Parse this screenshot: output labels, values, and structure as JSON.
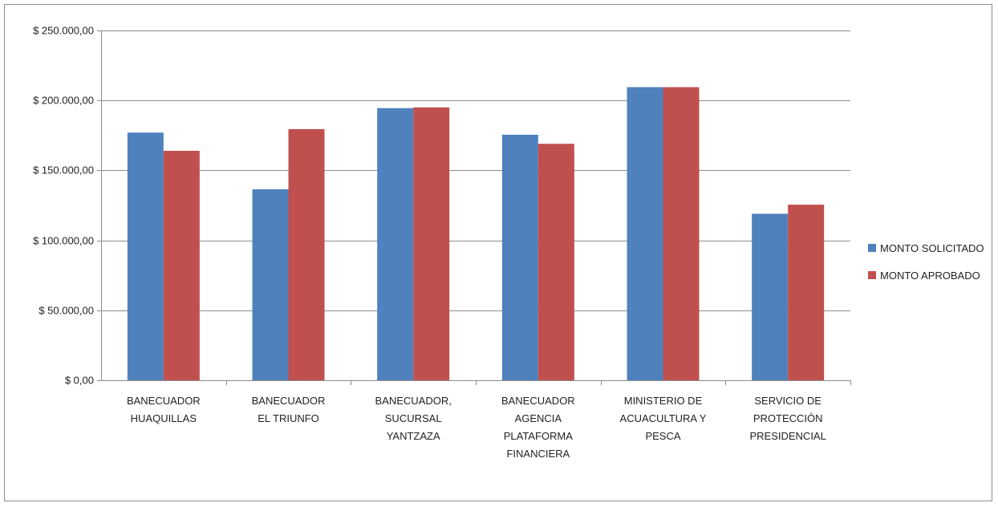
{
  "chart_data": {
    "type": "bar",
    "title": "",
    "xlabel": "",
    "ylabel": "",
    "ylim": [
      0,
      250000
    ],
    "ytick_values": [
      0,
      50000,
      100000,
      150000,
      200000,
      250000
    ],
    "ytick_labels": [
      "$ 0,00",
      "$ 50.000,00",
      "$ 100.000,00",
      "$ 150.000,00",
      "$ 200.000,00",
      "$ 250.000,00"
    ],
    "grid": true,
    "legend_position": "right",
    "categories": [
      [
        "BANECUADOR",
        "HUAQUILLAS"
      ],
      [
        "BANECUADOR",
        "EL TRIUNFO"
      ],
      [
        "BANECUADOR,",
        "SUCURSAL",
        "YANTZAZA"
      ],
      [
        "BANECUADOR",
        "AGENCIA",
        "PLATAFORMA",
        "FINANCIERA"
      ],
      [
        "MINISTERIO DE",
        "ACUACULTURA Y",
        "PESCA"
      ],
      [
        "SERVICIO DE",
        "PROTECCIÓN",
        "PRESIDENCIAL"
      ]
    ],
    "series": [
      {
        "name": "MONTO SOLICITADO",
        "color": "#4f81bd",
        "values": [
          177000,
          136500,
          194500,
          175500,
          209500,
          119000
        ]
      },
      {
        "name": "MONTO APROBADO",
        "color": "#c0504d",
        "values": [
          164000,
          179500,
          195000,
          169000,
          209500,
          125500
        ]
      }
    ]
  }
}
